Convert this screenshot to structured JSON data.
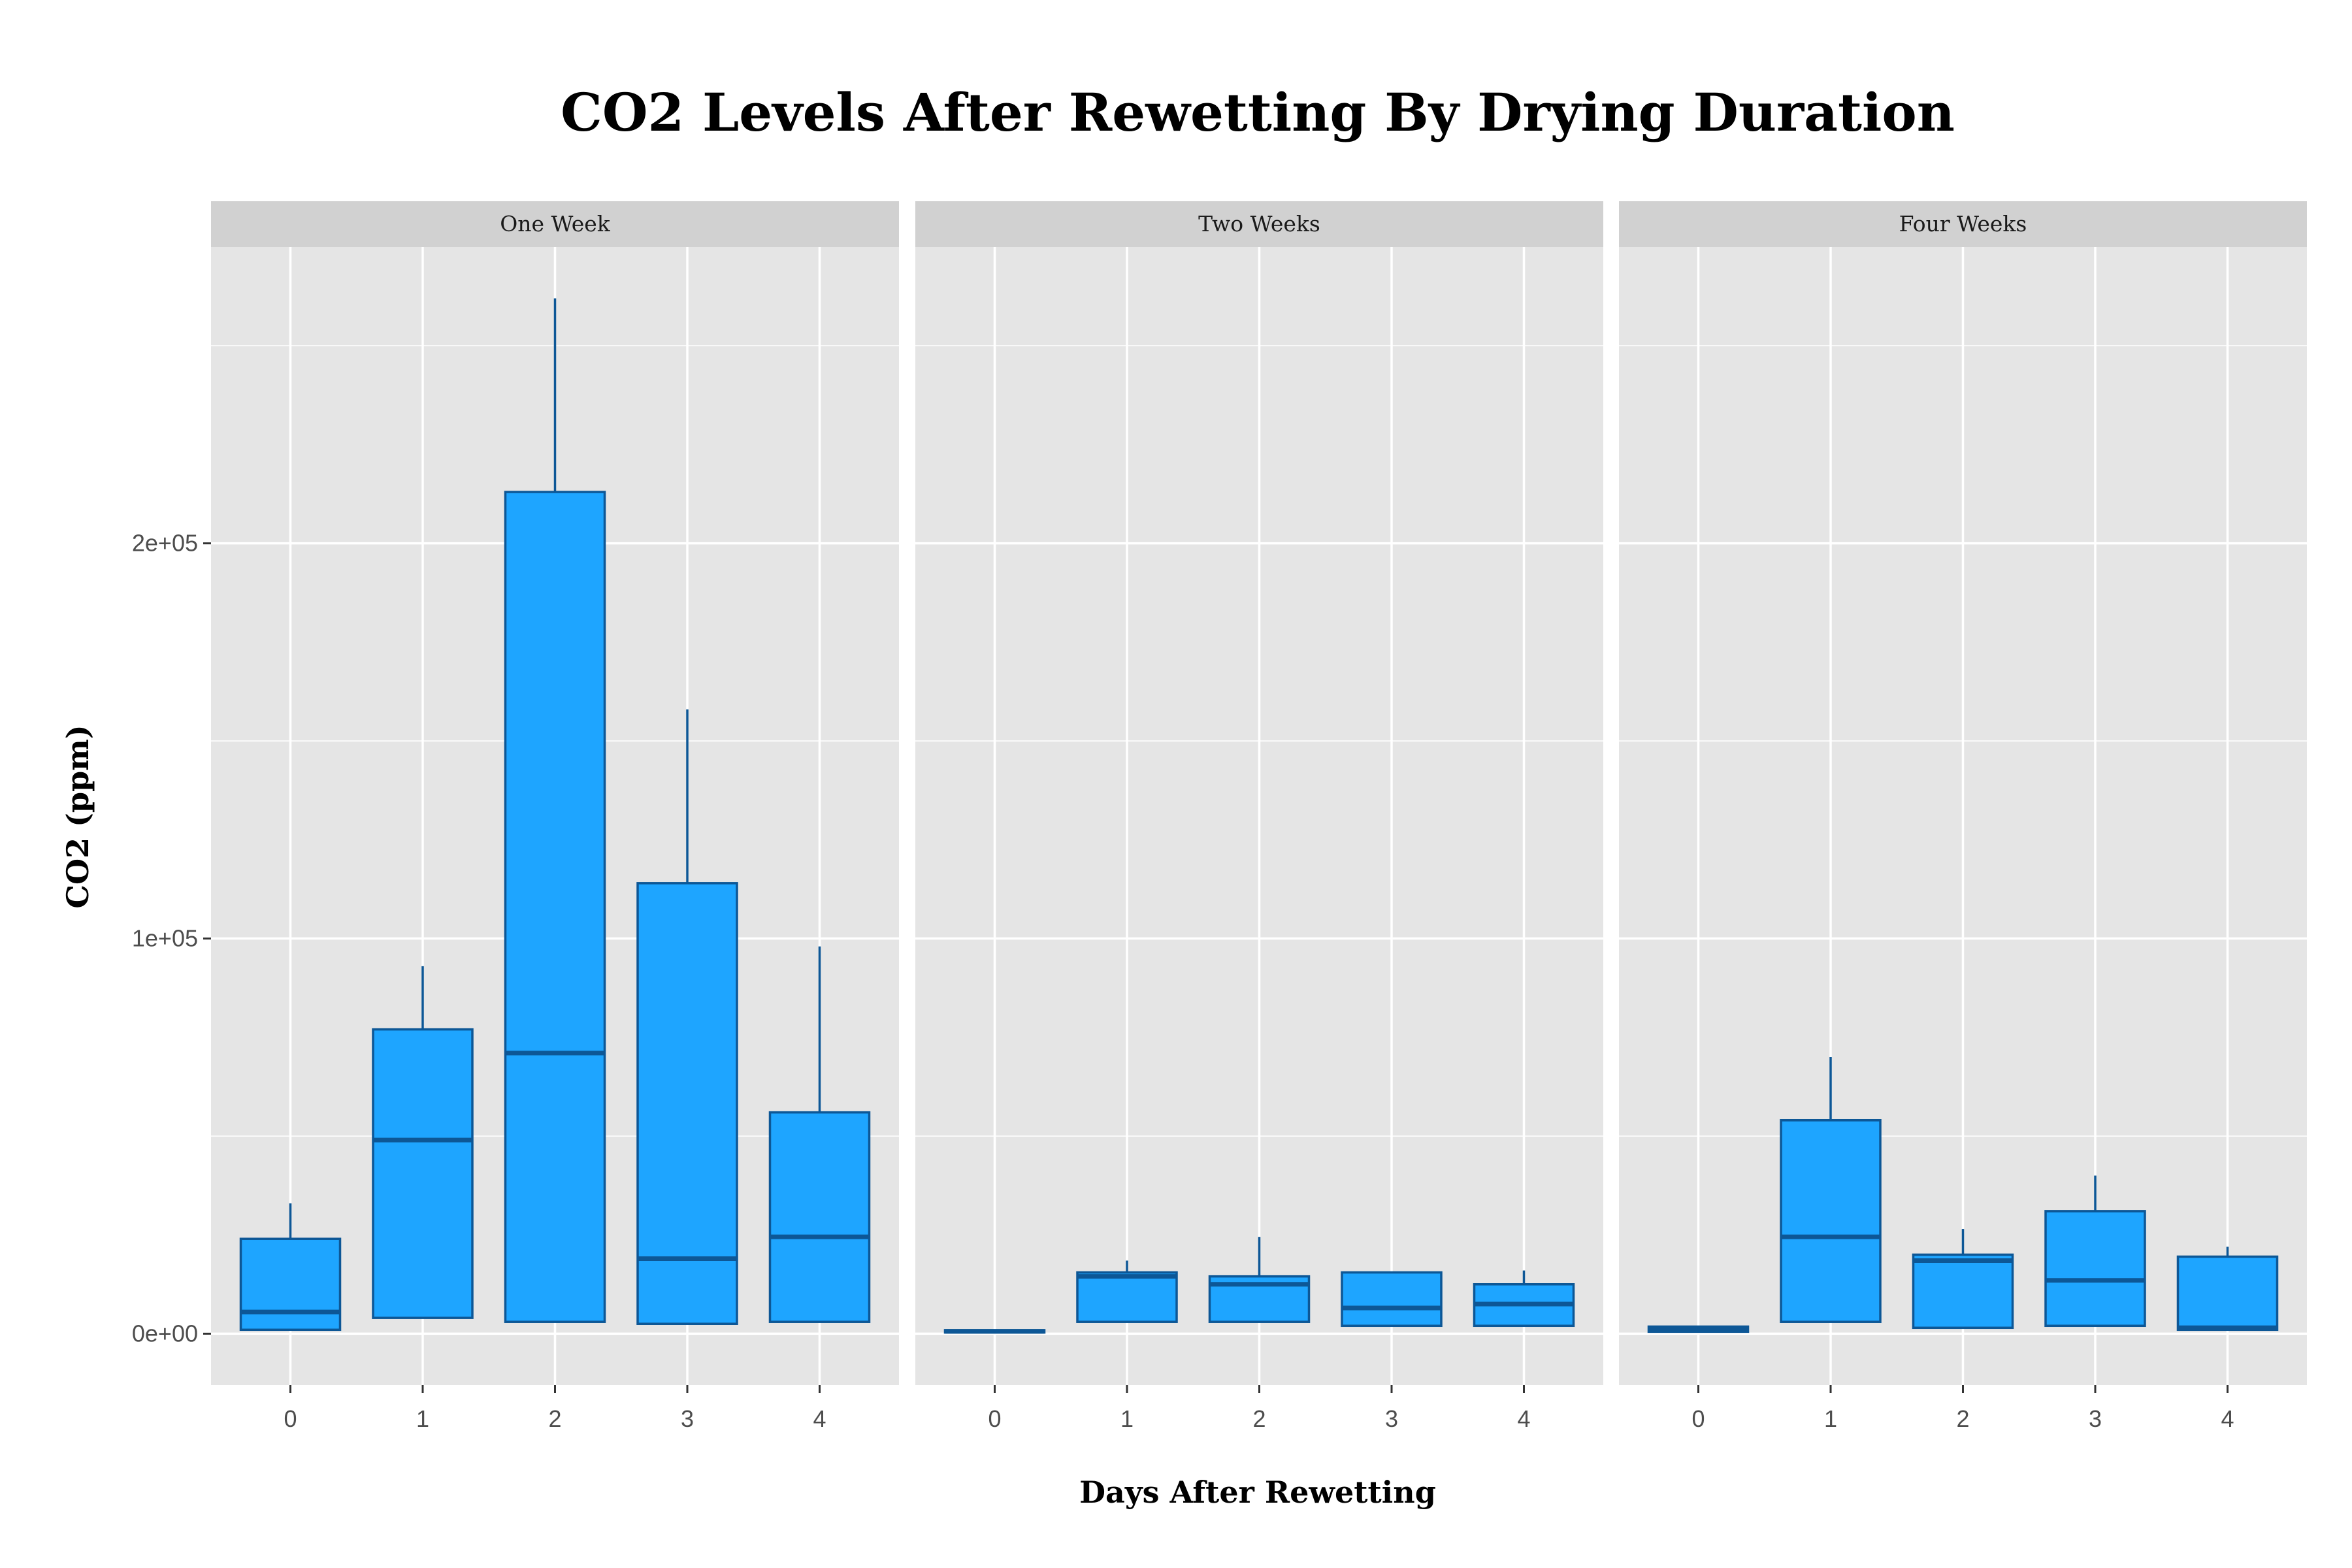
{
  "chart_data": {
    "type": "boxplot",
    "title": "CO2 Levels After Rewetting By Drying Duration",
    "xlabel": "Days After Rewetting",
    "ylabel": "CO2 (ppm)",
    "ylim": [
      -13000,
      275000
    ],
    "yticks": [
      0,
      100000,
      200000
    ],
    "ytick_labels": [
      "0e+00",
      "1e+05",
      "2e+05"
    ],
    "categories": [
      "0",
      "1",
      "2",
      "3",
      "4"
    ],
    "grid": true,
    "colors": {
      "box_fill": "#1ea5ff",
      "box_outline": "#0d5796",
      "panel_bg": "#e5e5e5",
      "strip_bg": "#d1d1d1",
      "grid": "#ffffff"
    },
    "panels": [
      {
        "name": "One Week",
        "boxes": [
          {
            "x": "0",
            "ymin": 1000,
            "q1": 1000,
            "median": 5500,
            "q3": 24000,
            "ymax": 33000
          },
          {
            "x": "1",
            "ymin": 4000,
            "q1": 4000,
            "median": 49000,
            "q3": 77000,
            "ymax": 93000
          },
          {
            "x": "2",
            "ymin": 3000,
            "q1": 3000,
            "median": 71000,
            "q3": 213000,
            "ymax": 262000
          },
          {
            "x": "3",
            "ymin": 2500,
            "q1": 2500,
            "median": 19000,
            "q3": 114000,
            "ymax": 158000
          },
          {
            "x": "4",
            "ymin": 3000,
            "q1": 3000,
            "median": 24500,
            "q3": 56000,
            "ymax": 98000
          }
        ]
      },
      {
        "name": "Two Weeks",
        "boxes": [
          {
            "x": "0",
            "ymin": 300,
            "q1": 300,
            "median": 600,
            "q3": 900,
            "ymax": 900
          },
          {
            "x": "1",
            "ymin": 3000,
            "q1": 3000,
            "median": 14500,
            "q3": 15500,
            "ymax": 18500
          },
          {
            "x": "2",
            "ymin": 3000,
            "q1": 3000,
            "median": 12500,
            "q3": 14500,
            "ymax": 24500
          },
          {
            "x": "3",
            "ymin": 2000,
            "q1": 2000,
            "median": 6500,
            "q3": 15500,
            "ymax": 15500
          },
          {
            "x": "4",
            "ymin": 2000,
            "q1": 2000,
            "median": 7500,
            "q3": 12500,
            "ymax": 16000
          }
        ]
      },
      {
        "name": "Four Weeks",
        "boxes": [
          {
            "x": "0",
            "ymin": 500,
            "q1": 500,
            "median": 1200,
            "q3": 1800,
            "ymax": 1800
          },
          {
            "x": "1",
            "ymin": 3000,
            "q1": 3000,
            "median": 24500,
            "q3": 54000,
            "ymax": 70000
          },
          {
            "x": "2",
            "ymin": 1500,
            "q1": 1500,
            "median": 18500,
            "q3": 20000,
            "ymax": 26500
          },
          {
            "x": "3",
            "ymin": 2000,
            "q1": 2000,
            "median": 13500,
            "q3": 31000,
            "ymax": 40000
          },
          {
            "x": "4",
            "ymin": 1000,
            "q1": 1000,
            "median": 1500,
            "q3": 19500,
            "ymax": 22000
          }
        ]
      }
    ]
  }
}
